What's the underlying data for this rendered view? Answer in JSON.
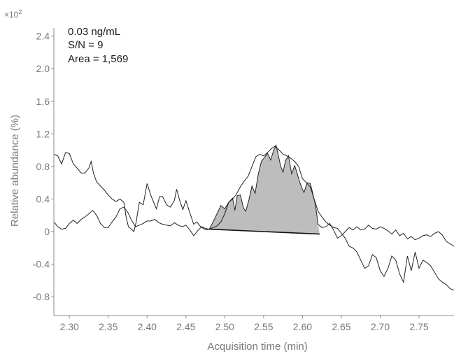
{
  "chart_data": {
    "type": "line",
    "xlabel": "Acquisition time (min)",
    "ylabel": "Relative abundance (%)",
    "y_multiplier": {
      "base": "×10",
      "exponent": "2"
    },
    "xlim": [
      2.28,
      2.795
    ],
    "ylim": [
      -1.03,
      2.5
    ],
    "x_ticks": [
      2.3,
      2.35,
      2.4,
      2.45,
      2.5,
      2.55,
      2.6,
      2.65,
      2.7,
      2.75
    ],
    "x_tick_labels": [
      "2.30",
      "2.35",
      "2.40",
      "2.45",
      "2.50",
      "2.55",
      "2.60",
      "2.65",
      "2.70",
      "2.75"
    ],
    "y_ticks": [
      -0.8,
      -0.4,
      0,
      0.4,
      0.8,
      1.2,
      1.6,
      2.0,
      2.4
    ],
    "y_tick_labels": [
      "-0.8",
      "-0.4",
      "0",
      "0.4",
      "0.8",
      "1.2",
      "1.6",
      "2.0",
      "2.4"
    ],
    "annotations": [
      "0.03 ng/mL",
      "S/N = 9",
      "Area = 1,569"
    ],
    "grid": false,
    "series": [
      {
        "points": [
          [
            2.28,
            0.95
          ],
          [
            2.285,
            0.93
          ],
          [
            2.29,
            0.83
          ],
          [
            2.295,
            0.97
          ],
          [
            2.3,
            0.96
          ],
          [
            2.305,
            0.83
          ],
          [
            2.31,
            0.78
          ],
          [
            2.315,
            0.72
          ],
          [
            2.32,
            0.72
          ],
          [
            2.325,
            0.78
          ],
          [
            2.328,
            0.86
          ],
          [
            2.331,
            0.72
          ],
          [
            2.335,
            0.61
          ],
          [
            2.34,
            0.56
          ],
          [
            2.345,
            0.51
          ],
          [
            2.35,
            0.45
          ],
          [
            2.355,
            0.4
          ],
          [
            2.36,
            0.37
          ],
          [
            2.365,
            0.4
          ],
          [
            2.37,
            0.36
          ],
          [
            2.373,
            0.18
          ],
          [
            2.376,
            0.06
          ],
          [
            2.38,
            0.03
          ],
          [
            2.383,
            0.0
          ],
          [
            2.386,
            0.12
          ],
          [
            2.39,
            0.36
          ],
          [
            2.395,
            0.33
          ],
          [
            2.4,
            0.59
          ],
          [
            2.405,
            0.44
          ],
          [
            2.408,
            0.37
          ],
          [
            2.412,
            0.28
          ],
          [
            2.416,
            0.43
          ],
          [
            2.42,
            0.43
          ],
          [
            2.425,
            0.33
          ],
          [
            2.43,
            0.3
          ],
          [
            2.435,
            0.38
          ],
          [
            2.438,
            0.52
          ],
          [
            2.442,
            0.38
          ],
          [
            2.446,
            0.27
          ],
          [
            2.45,
            0.38
          ],
          [
            2.455,
            0.23
          ],
          [
            2.46,
            0.09
          ],
          [
            2.464,
            0.12
          ],
          [
            2.468,
            0.07
          ],
          [
            2.472,
            0.04
          ],
          [
            2.476,
            0.02
          ],
          [
            2.48,
            0.03
          ],
          [
            2.485,
            0.05
          ],
          [
            2.49,
            0.07
          ],
          [
            2.495,
            0.12
          ],
          [
            2.5,
            0.22
          ],
          [
            2.505,
            0.36
          ],
          [
            2.51,
            0.4
          ],
          [
            2.515,
            0.46
          ],
          [
            2.52,
            0.55
          ],
          [
            2.525,
            0.62
          ],
          [
            2.53,
            0.68
          ],
          [
            2.535,
            0.8
          ],
          [
            2.54,
            0.92
          ],
          [
            2.545,
            0.95
          ],
          [
            2.55,
            0.93
          ],
          [
            2.555,
            0.97
          ],
          [
            2.56,
            1.02
          ],
          [
            2.565,
            1.05
          ],
          [
            2.57,
            1.0
          ],
          [
            2.575,
            0.95
          ],
          [
            2.58,
            0.93
          ],
          [
            2.585,
            0.9
          ],
          [
            2.59,
            0.86
          ],
          [
            2.595,
            0.8
          ],
          [
            2.6,
            0.65
          ],
          [
            2.605,
            0.6
          ],
          [
            2.61,
            0.55
          ],
          [
            2.615,
            0.4
          ],
          [
            2.62,
            0.25
          ],
          [
            2.625,
            0.18
          ],
          [
            2.63,
            0.12
          ],
          [
            2.635,
            0.08
          ],
          [
            2.64,
            0.05
          ],
          [
            2.645,
            0.04
          ],
          [
            2.65,
            -0.02
          ],
          [
            2.655,
            -0.08
          ],
          [
            2.66,
            -0.18
          ],
          [
            2.665,
            -0.2
          ],
          [
            2.67,
            -0.25
          ],
          [
            2.675,
            -0.35
          ],
          [
            2.68,
            -0.45
          ],
          [
            2.685,
            -0.42
          ],
          [
            2.69,
            -0.28
          ],
          [
            2.695,
            -0.32
          ],
          [
            2.7,
            -0.48
          ],
          [
            2.705,
            -0.55
          ],
          [
            2.71,
            -0.45
          ],
          [
            2.715,
            -0.3
          ],
          [
            2.72,
            -0.35
          ],
          [
            2.725,
            -0.52
          ],
          [
            2.73,
            -0.62
          ],
          [
            2.735,
            -0.3
          ],
          [
            2.74,
            -0.48
          ],
          [
            2.745,
            -0.25
          ],
          [
            2.75,
            -0.45
          ],
          [
            2.755,
            -0.35
          ],
          [
            2.76,
            -0.38
          ],
          [
            2.765,
            -0.42
          ],
          [
            2.77,
            -0.5
          ],
          [
            2.775,
            -0.58
          ],
          [
            2.78,
            -0.62
          ],
          [
            2.785,
            -0.65
          ],
          [
            2.79,
            -0.7
          ],
          [
            2.795,
            -0.72
          ]
        ]
      },
      {
        "points": [
          [
            2.28,
            0.12
          ],
          [
            2.285,
            0.06
          ],
          [
            2.29,
            0.03
          ],
          [
            2.295,
            0.04
          ],
          [
            2.3,
            0.1
          ],
          [
            2.305,
            0.14
          ],
          [
            2.31,
            0.1
          ],
          [
            2.315,
            0.15
          ],
          [
            2.32,
            0.18
          ],
          [
            2.325,
            0.22
          ],
          [
            2.33,
            0.26
          ],
          [
            2.335,
            0.2
          ],
          [
            2.34,
            0.1
          ],
          [
            2.345,
            0.05
          ],
          [
            2.35,
            0.05
          ],
          [
            2.355,
            0.12
          ],
          [
            2.36,
            0.18
          ],
          [
            2.365,
            0.28
          ],
          [
            2.37,
            0.3
          ],
          [
            2.375,
            0.24
          ],
          [
            2.38,
            0.14
          ],
          [
            2.385,
            0.06
          ],
          [
            2.39,
            0.08
          ],
          [
            2.395,
            0.1
          ],
          [
            2.4,
            0.13
          ],
          [
            2.405,
            0.13
          ],
          [
            2.41,
            0.15
          ],
          [
            2.415,
            0.11
          ],
          [
            2.42,
            0.09
          ],
          [
            2.425,
            0.08
          ],
          [
            2.43,
            0.07
          ],
          [
            2.435,
            0.11
          ],
          [
            2.44,
            0.08
          ],
          [
            2.445,
            0.06
          ],
          [
            2.45,
            0.08
          ],
          [
            2.455,
            0.02
          ],
          [
            2.46,
            -0.05
          ],
          [
            2.465,
            0.01
          ],
          [
            2.47,
            0.06
          ],
          [
            2.475,
            0.04
          ],
          [
            2.48,
            0.03
          ],
          [
            2.485,
            0.12
          ],
          [
            2.49,
            0.22
          ],
          [
            2.495,
            0.32
          ],
          [
            2.5,
            0.28
          ],
          [
            2.505,
            0.36
          ],
          [
            2.51,
            0.41
          ],
          [
            2.513,
            0.26
          ],
          [
            2.516,
            0.44
          ],
          [
            2.52,
            0.45
          ],
          [
            2.524,
            0.29
          ],
          [
            2.527,
            0.25
          ],
          [
            2.531,
            0.39
          ],
          [
            2.535,
            0.56
          ],
          [
            2.539,
            0.47
          ],
          [
            2.543,
            0.7
          ],
          [
            2.547,
            0.86
          ],
          [
            2.551,
            0.91
          ],
          [
            2.555,
            0.96
          ],
          [
            2.559,
            0.88
          ],
          [
            2.563,
            1.0
          ],
          [
            2.566,
            1.06
          ],
          [
            2.569,
            0.93
          ],
          [
            2.572,
            0.8
          ],
          [
            2.575,
            0.73
          ],
          [
            2.578,
            0.87
          ],
          [
            2.582,
            0.93
          ],
          [
            2.586,
            0.71
          ],
          [
            2.59,
            0.81
          ],
          [
            2.593,
            0.72
          ],
          [
            2.596,
            0.62
          ],
          [
            2.599,
            0.54
          ],
          [
            2.602,
            0.48
          ],
          [
            2.606,
            0.6
          ],
          [
            2.61,
            0.59
          ],
          [
            2.613,
            0.48
          ],
          [
            2.617,
            0.31
          ],
          [
            2.62,
            0.09
          ],
          [
            2.625,
            0.05
          ],
          [
            2.63,
            0.06
          ],
          [
            2.635,
            0.1
          ],
          [
            2.64,
            0.02
          ],
          [
            2.645,
            -0.08
          ],
          [
            2.65,
            -0.05
          ],
          [
            2.655,
            0.0
          ],
          [
            2.66,
            0.05
          ],
          [
            2.665,
            0.02
          ],
          [
            2.67,
            0.06
          ],
          [
            2.675,
            0.02
          ],
          [
            2.68,
            0.03
          ],
          [
            2.685,
            0.08
          ],
          [
            2.69,
            0.04
          ],
          [
            2.695,
            0.03
          ],
          [
            2.7,
            0.06
          ],
          [
            2.705,
            0.04
          ],
          [
            2.71,
            0.01
          ],
          [
            2.715,
            -0.03
          ],
          [
            2.72,
            0.02
          ],
          [
            2.725,
            -0.05
          ],
          [
            2.73,
            -0.02
          ],
          [
            2.735,
            -0.09
          ],
          [
            2.74,
            -0.06
          ],
          [
            2.745,
            -0.1
          ],
          [
            2.75,
            -0.08
          ],
          [
            2.755,
            -0.05
          ],
          [
            2.76,
            -0.04
          ],
          [
            2.765,
            -0.06
          ],
          [
            2.77,
            -0.02
          ],
          [
            2.775,
            0.0
          ],
          [
            2.78,
            -0.04
          ],
          [
            2.785,
            -0.12
          ],
          [
            2.79,
            -0.15
          ],
          [
            2.795,
            -0.18
          ]
        ]
      }
    ],
    "peak_area": {
      "baseline": [
        [
          2.48,
          0.03
        ],
        [
          2.622,
          -0.03
        ]
      ],
      "fill": "#bdbdbd"
    }
  }
}
